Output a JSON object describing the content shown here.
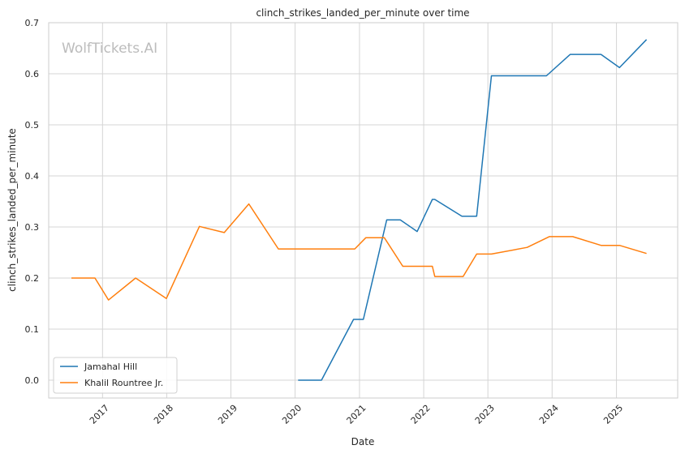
{
  "chart_data": {
    "type": "line",
    "title": "clinch_strikes_landed_per_minute over time",
    "xlabel": "Date",
    "ylabel": "clinch_strikes_landed_per_minute",
    "watermark": "WolfTickets.AI",
    "x_type": "date",
    "xlim": [
      "2016-03-01",
      "2025-12-15"
    ],
    "ylim": [
      -0.035,
      0.7
    ],
    "x_ticks": [
      "2017",
      "2018",
      "2019",
      "2020",
      "2021",
      "2022",
      "2023",
      "2024",
      "2025"
    ],
    "y_ticks": [
      "0.0",
      "0.1",
      "0.2",
      "0.3",
      "0.4",
      "0.5",
      "0.6",
      "0.7"
    ],
    "grid": true,
    "legend_position": "lower-left",
    "series": [
      {
        "name": "Jamahal Hill",
        "color": "#1f77b4",
        "points": [
          {
            "x": "2020-01-18",
            "y": 0.0
          },
          {
            "x": "2020-05-30",
            "y": 0.0
          },
          {
            "x": "2020-11-28",
            "y": 0.119
          },
          {
            "x": "2021-01-23",
            "y": 0.119
          },
          {
            "x": "2021-06-05",
            "y": 0.314
          },
          {
            "x": "2021-08-21",
            "y": 0.314
          },
          {
            "x": "2021-11-25",
            "y": 0.291
          },
          {
            "x": "2022-02-19",
            "y": 0.354
          },
          {
            "x": "2022-03-05",
            "y": 0.354
          },
          {
            "x": "2022-08-06",
            "y": 0.321
          },
          {
            "x": "2022-10-29",
            "y": 0.321
          },
          {
            "x": "2023-01-21",
            "y": 0.596
          },
          {
            "x": "2023-11-30",
            "y": 0.596
          },
          {
            "x": "2024-04-13",
            "y": 0.638
          },
          {
            "x": "2024-10-05",
            "y": 0.638
          },
          {
            "x": "2025-01-18",
            "y": 0.612
          },
          {
            "x": "2025-06-21",
            "y": 0.667
          }
        ]
      },
      {
        "name": "Khalil Rountree Jr.",
        "color": "#ff7f0e",
        "points": [
          {
            "x": "2016-07-08",
            "y": 0.2
          },
          {
            "x": "2016-11-19",
            "y": 0.2
          },
          {
            "x": "2017-02-04",
            "y": 0.157
          },
          {
            "x": "2017-07-08",
            "y": 0.2
          },
          {
            "x": "2017-12-30",
            "y": 0.16
          },
          {
            "x": "2018-07-06",
            "y": 0.301
          },
          {
            "x": "2018-11-24",
            "y": 0.289
          },
          {
            "x": "2019-04-13",
            "y": 0.345
          },
          {
            "x": "2019-09-28",
            "y": 0.257
          },
          {
            "x": "2020-12-05",
            "y": 0.257
          },
          {
            "x": "2021-02-06",
            "y": 0.279
          },
          {
            "x": "2021-05-22",
            "y": 0.279
          },
          {
            "x": "2021-09-04",
            "y": 0.223
          },
          {
            "x": "2022-02-19",
            "y": 0.223
          },
          {
            "x": "2022-03-05",
            "y": 0.203
          },
          {
            "x": "2022-08-13",
            "y": 0.203
          },
          {
            "x": "2022-10-29",
            "y": 0.247
          },
          {
            "x": "2023-01-21",
            "y": 0.247
          },
          {
            "x": "2023-08-12",
            "y": 0.26
          },
          {
            "x": "2023-12-16",
            "y": 0.281
          },
          {
            "x": "2024-04-27",
            "y": 0.281
          },
          {
            "x": "2024-10-05",
            "y": 0.264
          },
          {
            "x": "2025-01-18",
            "y": 0.264
          },
          {
            "x": "2025-06-21",
            "y": 0.248
          }
        ]
      }
    ]
  }
}
